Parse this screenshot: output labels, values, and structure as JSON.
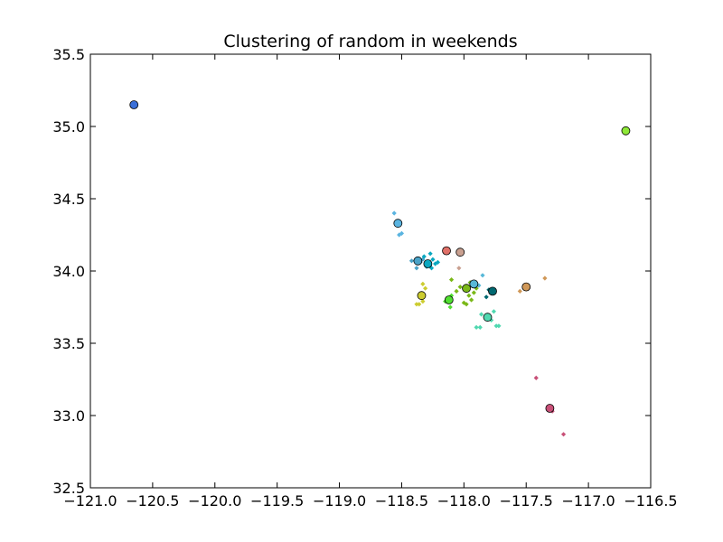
{
  "chart_data": {
    "type": "scatter",
    "title": "Clustering of random in weekends",
    "xlabel": "",
    "ylabel": "",
    "xlim": [
      -121.0,
      -116.5
    ],
    "ylim": [
      32.5,
      35.5
    ],
    "x_ticks": [
      -121.0,
      -120.5,
      -120.0,
      -119.5,
      -119.0,
      -118.5,
      -118.0,
      -117.5,
      -117.0,
      -116.5
    ],
    "x_tick_labels": [
      "−121.0",
      "−120.5",
      "−120.0",
      "−119.5",
      "−119.0",
      "−118.5",
      "−118.0",
      "−117.5",
      "−117.0",
      "−116.5"
    ],
    "y_ticks": [
      32.5,
      33.0,
      33.5,
      34.0,
      34.5,
      35.0,
      35.5
    ],
    "y_tick_labels": [
      "32.5",
      "33.0",
      "33.5",
      "34.0",
      "34.5",
      "35.0",
      "35.5"
    ],
    "grid": false,
    "legend": "none",
    "series": [
      {
        "color": "#3a6fd8",
        "centroid": [
          -120.65,
          35.15
        ],
        "points": []
      },
      {
        "color": "#8ee838",
        "centroid": [
          -116.7,
          34.97
        ],
        "points": []
      },
      {
        "color": "#5ab4e0",
        "centroid": [
          -118.53,
          34.33
        ],
        "points": [
          [
            -118.56,
            34.4
          ],
          [
            -118.52,
            34.25
          ],
          [
            -118.5,
            34.26
          ]
        ]
      },
      {
        "color": "#4aa3c8",
        "centroid": [
          -118.37,
          34.07
        ],
        "points": [
          [
            -118.42,
            34.07
          ],
          [
            -118.38,
            34.02
          ],
          [
            -118.35,
            34.06
          ],
          [
            -118.33,
            34.08
          ]
        ]
      },
      {
        "color": "#0aa8c0",
        "centroid": [
          -118.29,
          34.05
        ],
        "points": [
          [
            -118.27,
            34.12
          ],
          [
            -118.23,
            34.05
          ],
          [
            -118.3,
            34.03
          ],
          [
            -118.25,
            34.08
          ],
          [
            -118.32,
            34.1
          ],
          [
            -118.21,
            34.06
          ],
          [
            -118.26,
            34.02
          ]
        ]
      },
      {
        "color": "#e07068",
        "centroid": [
          -118.14,
          34.14
        ],
        "points": []
      },
      {
        "color": "#c9a090",
        "centroid": [
          -118.03,
          34.13
        ],
        "points": [
          [
            -118.04,
            34.02
          ]
        ]
      },
      {
        "color": "#58b8d8",
        "centroid": [
          -117.92,
          33.91
        ],
        "points": [
          [
            -117.85,
            33.97
          ],
          [
            -117.95,
            33.92
          ],
          [
            -117.88,
            33.9
          ]
        ]
      },
      {
        "color": "#cccc30",
        "centroid": [
          -118.34,
          33.83
        ],
        "points": [
          [
            -118.36,
            33.77
          ],
          [
            -118.33,
            33.79
          ],
          [
            -118.31,
            33.88
          ],
          [
            -118.35,
            33.83
          ],
          [
            -118.33,
            33.91
          ],
          [
            -118.38,
            33.77
          ]
        ]
      },
      {
        "color": "#50e030",
        "centroid": [
          -118.12,
          33.8
        ],
        "points": [
          [
            -118.11,
            33.75
          ],
          [
            -118.15,
            33.79
          ],
          [
            -118.1,
            33.83
          ]
        ]
      },
      {
        "color": "#7ab818",
        "centroid": [
          -117.98,
          33.88
        ],
        "points": [
          [
            -118.1,
            33.94
          ],
          [
            -118.03,
            33.89
          ],
          [
            -117.96,
            33.83
          ],
          [
            -117.92,
            33.85
          ],
          [
            -117.98,
            33.77
          ],
          [
            -117.94,
            33.8
          ],
          [
            -117.9,
            33.88
          ],
          [
            -118.06,
            33.86
          ],
          [
            -117.95,
            33.92
          ],
          [
            -118.0,
            33.78
          ]
        ]
      },
      {
        "color": "#006870",
        "centroid": [
          -117.77,
          33.86
        ],
        "points": [
          [
            -117.82,
            33.82
          ],
          [
            -117.8,
            33.87
          ]
        ]
      },
      {
        "color": "#50d8b0",
        "centroid": [
          -117.81,
          33.68
        ],
        "points": [
          [
            -117.86,
            33.7
          ],
          [
            -117.76,
            33.72
          ],
          [
            -117.78,
            33.66
          ],
          [
            -117.74,
            33.62
          ],
          [
            -117.9,
            33.61
          ],
          [
            -117.87,
            33.61
          ],
          [
            -117.72,
            33.62
          ]
        ]
      },
      {
        "color": "#d09858",
        "centroid": [
          -117.5,
          33.89
        ],
        "points": [
          [
            -117.55,
            33.86
          ],
          [
            -117.35,
            33.95
          ]
        ]
      },
      {
        "color": "#c85078",
        "centroid": [
          -117.31,
          33.05
        ],
        "points": [
          [
            -117.42,
            33.26
          ],
          [
            -117.29,
            33.03
          ],
          [
            -117.2,
            32.87
          ]
        ]
      }
    ]
  }
}
